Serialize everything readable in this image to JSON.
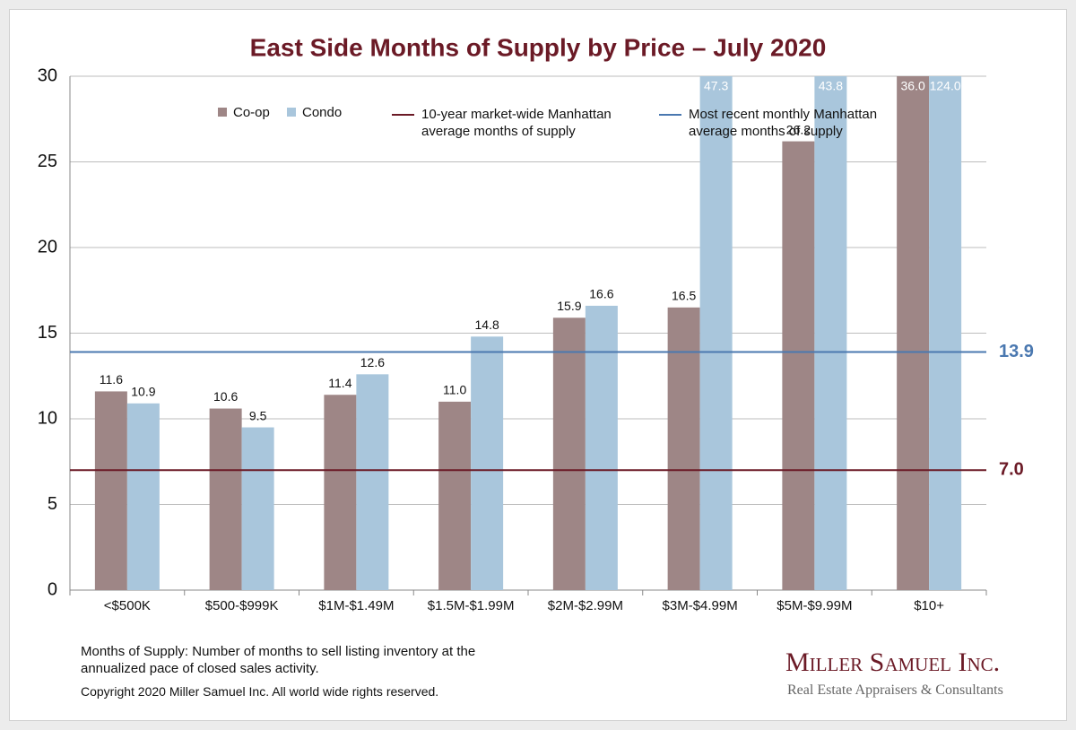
{
  "chart_data": {
    "type": "bar",
    "title": "East Side Months of Supply by Price – July 2020",
    "categories": [
      "<$500K",
      "$500-$999K",
      "$1M-$1.49M",
      "$1.5M-$1.99M",
      "$2M-$2.99M",
      "$3M-$4.99M",
      "$5M-$9.99M",
      "$10+"
    ],
    "series": [
      {
        "name": "Co-op",
        "color": "#9e8686",
        "values": [
          11.6,
          10.6,
          11.4,
          11.0,
          15.9,
          16.5,
          26.2,
          36.0
        ],
        "value_labels": [
          "11.6",
          "10.6",
          "11.4",
          "11.0",
          "15.9",
          "16.5",
          "26.2",
          "36.0"
        ]
      },
      {
        "name": "Condo",
        "color": "#a9c6dc",
        "values": [
          10.9,
          9.5,
          12.6,
          14.8,
          16.6,
          47.3,
          43.8,
          124.0
        ],
        "value_labels": [
          "10.9",
          "9.5",
          "12.6",
          "14.8",
          "16.6",
          "47.3",
          "43.8",
          "124.0"
        ]
      }
    ],
    "reference_lines": [
      {
        "name": "10-year  market-wide Manhattan average months of supply",
        "value": 7.0,
        "label": "7.0",
        "color": "#6b1a26"
      },
      {
        "name": "Most recent monthly Manhattan average months of supply",
        "value": 13.9,
        "label": "13.9",
        "color": "#4a78b0"
      }
    ],
    "ylim": [
      0,
      30
    ],
    "yticks": [
      0,
      5,
      10,
      15,
      20,
      25,
      30
    ],
    "grid": true,
    "notes": [
      "Months of Supply: Number of months to sell listing inventory at the annualized pace of closed sales activity.",
      "Copyright 2020 Miller Samuel Inc.  All world wide rights reserved."
    ],
    "brand": "Miller Samuel Inc.",
    "tagline": "Real Estate Appraisers & Consultants"
  }
}
